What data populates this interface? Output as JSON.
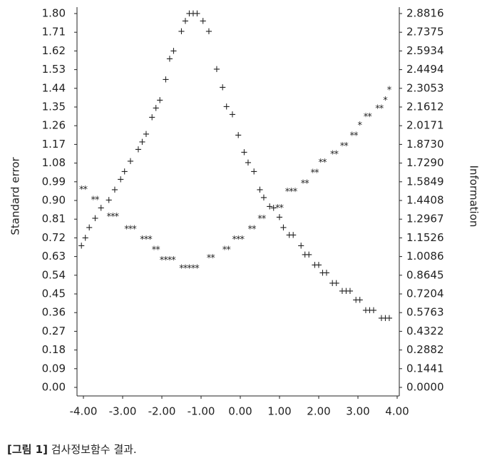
{
  "chart_data": {
    "type": "scatter",
    "ylabel": "Standard error",
    "y2label": "Information",
    "caption_label": "[그림 1]",
    "caption_text": " 검사정보함수 결과.",
    "xlim": [
      -4.15,
      4.05
    ],
    "xticks": [
      {
        "value": -4,
        "label": "-4.00"
      },
      {
        "value": -3,
        "label": "-3.00"
      },
      {
        "value": -2,
        "label": "-2.00"
      },
      {
        "value": -1,
        "label": "-1.00"
      },
      {
        "value": 0,
        "label": "0.00"
      },
      {
        "value": 1,
        "label": "1.00"
      },
      {
        "value": 2,
        "label": "2.00"
      },
      {
        "value": 3,
        "label": "3.00"
      },
      {
        "value": 4,
        "label": "4.00"
      }
    ],
    "ylim": [
      0,
      1.8
    ],
    "yticks": [
      {
        "value": 0,
        "label": "0.00"
      },
      {
        "value": 0.09,
        "label": "0.09"
      },
      {
        "value": 0.18,
        "label": "0.18"
      },
      {
        "value": 0.27,
        "label": "0.27"
      },
      {
        "value": 0.36,
        "label": "0.36"
      },
      {
        "value": 0.45,
        "label": "0.45"
      },
      {
        "value": 0.54,
        "label": "0.54"
      },
      {
        "value": 0.63,
        "label": "0.63"
      },
      {
        "value": 0.72,
        "label": "0.72"
      },
      {
        "value": 0.81,
        "label": "0.81"
      },
      {
        "value": 0.9,
        "label": "0.90"
      },
      {
        "value": 0.99,
        "label": "0.99"
      },
      {
        "value": 1.08,
        "label": "1.08"
      },
      {
        "value": 1.17,
        "label": "1.17"
      },
      {
        "value": 1.26,
        "label": "1.26"
      },
      {
        "value": 1.35,
        "label": "1.35"
      },
      {
        "value": 1.44,
        "label": "1.44"
      },
      {
        "value": 1.53,
        "label": "1.53"
      },
      {
        "value": 1.62,
        "label": "1.62"
      },
      {
        "value": 1.71,
        "label": "1.71"
      },
      {
        "value": 1.8,
        "label": "1.80"
      }
    ],
    "y2lim": [
      0,
      2.8816
    ],
    "y2ticks": [
      {
        "value": 0,
        "label": "0.0000"
      },
      {
        "value": 0.1441,
        "label": "0.1441"
      },
      {
        "value": 0.2882,
        "label": "0.2882"
      },
      {
        "value": 0.4322,
        "label": "0.4322"
      },
      {
        "value": 0.5763,
        "label": "0.5763"
      },
      {
        "value": 0.7204,
        "label": "0.7204"
      },
      {
        "value": 0.8645,
        "label": "0.8645"
      },
      {
        "value": 1.0086,
        "label": "1.0086"
      },
      {
        "value": 1.1526,
        "label": "1.1526"
      },
      {
        "value": 1.2967,
        "label": "1.2967"
      },
      {
        "value": 1.4408,
        "label": "1.4408"
      },
      {
        "value": 1.5849,
        "label": "1.5849"
      },
      {
        "value": 1.729,
        "label": "1.7290"
      },
      {
        "value": 1.873,
        "label": "1.8730"
      },
      {
        "value": 2.0171,
        "label": "2.0171"
      },
      {
        "value": 2.1612,
        "label": "2.1612"
      },
      {
        "value": 2.3053,
        "label": "2.3053"
      },
      {
        "value": 2.4494,
        "label": "2.4494"
      },
      {
        "value": 2.5934,
        "label": "2.5934"
      },
      {
        "value": 2.7375,
        "label": "2.7375"
      },
      {
        "value": 2.8816,
        "label": "2.8816"
      }
    ],
    "series": [
      {
        "marker": "+",
        "axis": "y2",
        "color": "#222222",
        "x": [
          -4.05,
          -3.95,
          -3.85,
          -3.7,
          -3.55,
          -3.35,
          -3.2,
          -3.05,
          -2.95,
          -2.8,
          -2.6,
          -2.5,
          -2.4,
          -2.25,
          -2.15,
          -2.05,
          -1.9,
          -1.8,
          -1.7,
          -1.5,
          -1.4,
          -1.3,
          -1.2,
          -1.1,
          -0.95,
          -0.8,
          -0.6,
          -0.45,
          -0.35,
          -0.2,
          -0.05,
          0.1,
          0.2,
          0.35,
          0.5,
          0.6,
          0.75,
          0.85,
          1.0,
          1.1,
          1.25,
          1.35,
          1.55,
          1.65,
          1.75,
          1.9,
          2.0,
          2.1,
          2.2,
          2.35,
          2.45,
          2.6,
          2.7,
          2.8,
          2.95,
          3.05,
          3.2,
          3.3,
          3.4,
          3.6,
          3.7,
          3.8
        ],
        "values": [
          1.09,
          1.15,
          1.23,
          1.3,
          1.38,
          1.44,
          1.52,
          1.6,
          1.66,
          1.74,
          1.83,
          1.89,
          1.95,
          2.08,
          2.15,
          2.21,
          2.37,
          2.53,
          2.59,
          2.74,
          2.82,
          2.88,
          2.88,
          2.88,
          2.82,
          2.74,
          2.45,
          2.31,
          2.16,
          2.1,
          1.94,
          1.81,
          1.73,
          1.66,
          1.52,
          1.46,
          1.39,
          1.38,
          1.31,
          1.23,
          1.17,
          1.17,
          1.09,
          1.02,
          1.02,
          0.94,
          0.94,
          0.88,
          0.88,
          0.8,
          0.8,
          0.74,
          0.74,
          0.74,
          0.67,
          0.67,
          0.59,
          0.59,
          0.59,
          0.53,
          0.53,
          0.53
        ]
      },
      {
        "marker": "*",
        "color": "#222222",
        "x": [
          -4.05,
          -3.95,
          -3.75,
          -3.65,
          -3.35,
          -3.25,
          -3.15,
          -2.9,
          -2.8,
          -2.7,
          -2.5,
          -2.4,
          -2.3,
          -2.2,
          -2.1,
          -2.0,
          -1.9,
          -1.8,
          -1.7,
          -1.5,
          -1.4,
          -1.3,
          -1.2,
          -1.1,
          -0.8,
          -0.7,
          -0.4,
          -0.3,
          -0.15,
          -0.05,
          0.05,
          0.25,
          0.35,
          0.5,
          0.6,
          0.95,
          1.05,
          1.2,
          1.3,
          1.4,
          1.6,
          1.7,
          1.85,
          1.95,
          2.05,
          2.15,
          2.35,
          2.45,
          2.6,
          2.7,
          2.85,
          2.95,
          3.05,
          3.2,
          3.3,
          3.5,
          3.6,
          3.7,
          3.8
        ],
        "values": [
          0.96,
          0.96,
          0.91,
          0.91,
          0.83,
          0.83,
          0.83,
          0.77,
          0.77,
          0.77,
          0.72,
          0.72,
          0.72,
          0.67,
          0.67,
          0.62,
          0.62,
          0.62,
          0.62,
          0.58,
          0.58,
          0.58,
          0.58,
          0.58,
          0.63,
          0.63,
          0.67,
          0.67,
          0.72,
          0.72,
          0.72,
          0.77,
          0.77,
          0.82,
          0.82,
          0.87,
          0.87,
          0.95,
          0.95,
          0.95,
          0.99,
          0.99,
          1.04,
          1.04,
          1.09,
          1.09,
          1.13,
          1.13,
          1.17,
          1.17,
          1.22,
          1.22,
          1.27,
          1.31,
          1.31,
          1.35,
          1.35,
          1.39,
          1.44
        ]
      }
    ]
  }
}
